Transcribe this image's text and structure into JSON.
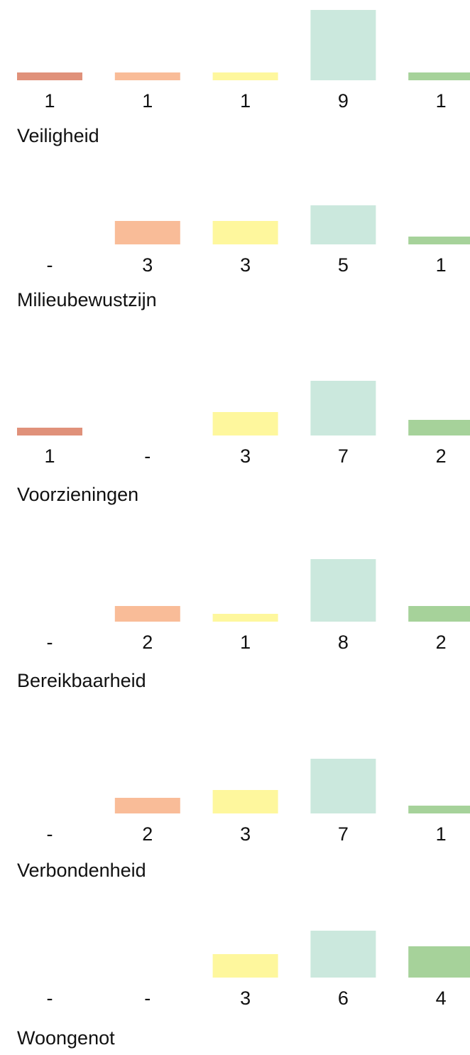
{
  "chart_data": [
    {
      "type": "bar",
      "title": "Veiligheid",
      "values": [
        1,
        1,
        1,
        9,
        1
      ],
      "value_labels": [
        "1",
        "1",
        "1",
        "9",
        "1"
      ],
      "colors": [
        "#e0917a",
        "#f9bc98",
        "#fef79d",
        "#cbe8dd",
        "#a6d29a"
      ]
    },
    {
      "type": "bar",
      "title": "Milieubewustzijn",
      "values": [
        0,
        3,
        3,
        5,
        1
      ],
      "value_labels": [
        "-",
        "3",
        "3",
        "5",
        "1"
      ],
      "colors": [
        "#e0917a",
        "#f9bc98",
        "#fef79d",
        "#cbe8dd",
        "#a6d29a"
      ]
    },
    {
      "type": "bar",
      "title": "Voorzieningen",
      "values": [
        1,
        0,
        3,
        7,
        2
      ],
      "value_labels": [
        "1",
        "-",
        "3",
        "7",
        "2"
      ],
      "colors": [
        "#e0917a",
        "#f9bc98",
        "#fef79d",
        "#cbe8dd",
        "#a6d29a"
      ]
    },
    {
      "type": "bar",
      "title": "Bereikbaarheid",
      "values": [
        0,
        2,
        1,
        8,
        2
      ],
      "value_labels": [
        "-",
        "2",
        "1",
        "8",
        "2"
      ],
      "colors": [
        "#e0917a",
        "#f9bc98",
        "#fef79d",
        "#cbe8dd",
        "#a6d29a"
      ]
    },
    {
      "type": "bar",
      "title": "Verbondenheid",
      "values": [
        0,
        2,
        3,
        7,
        1
      ],
      "value_labels": [
        "-",
        "2",
        "3",
        "7",
        "1"
      ],
      "colors": [
        "#e0917a",
        "#f9bc98",
        "#fef79d",
        "#cbe8dd",
        "#a6d29a"
      ]
    },
    {
      "type": "bar",
      "title": "Woongenot",
      "values": [
        0,
        0,
        3,
        6,
        4
      ],
      "value_labels": [
        "-",
        "-",
        "3",
        "6",
        "4"
      ],
      "colors": [
        "#e0917a",
        "#f9bc98",
        "#fef79d",
        "#cbe8dd",
        "#a6d29a"
      ]
    }
  ]
}
